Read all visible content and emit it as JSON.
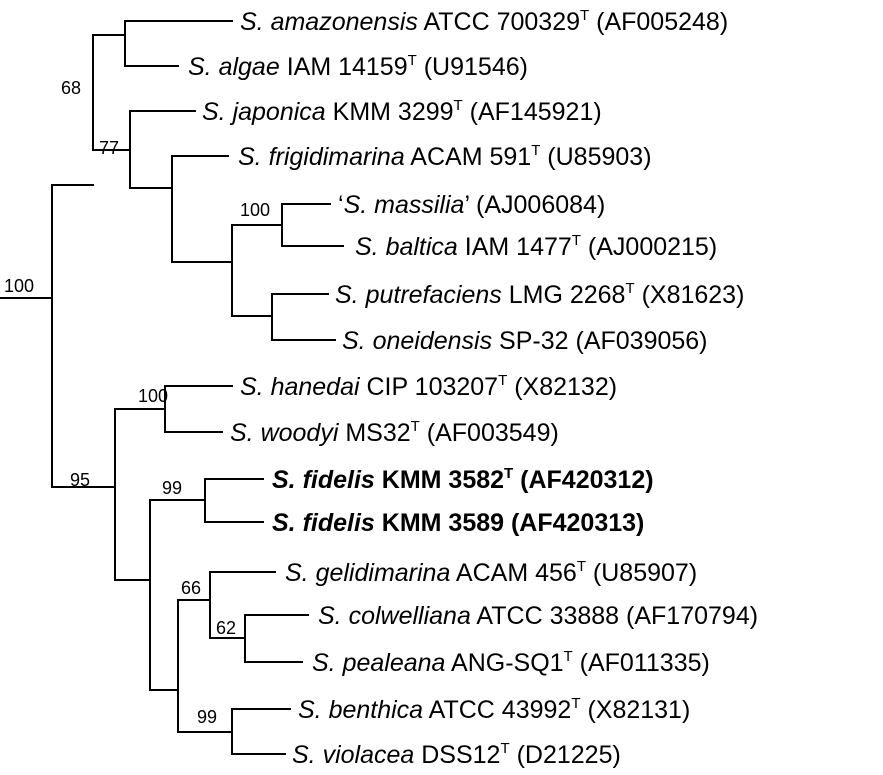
{
  "leaves": [
    {
      "species": "S. amazonensis",
      "strain": "ATCC 700329",
      "type_strain": true,
      "accession": "(AF005248)",
      "bold": false,
      "quoted": false
    },
    {
      "species": "S. algae",
      "strain": "IAM 14159",
      "type_strain": true,
      "accession": "(U91546)",
      "bold": false,
      "quoted": false
    },
    {
      "species": "S. japonica",
      "strain": "KMM 3299",
      "type_strain": true,
      "accession": "(AF145921)",
      "bold": false,
      "quoted": false
    },
    {
      "species": "S. frigidimarina",
      "strain": "ACAM 591",
      "type_strain": true,
      "accession": "(U85903)",
      "bold": false,
      "quoted": false
    },
    {
      "species": "S. massilia",
      "strain": "",
      "type_strain": false,
      "accession": "(AJ006084)",
      "bold": false,
      "quoted": true
    },
    {
      "species": "S. baltica",
      "strain": "IAM 1477",
      "type_strain": true,
      "accession": "(AJ000215)",
      "bold": false,
      "quoted": false
    },
    {
      "species": "S. putrefaciens",
      "strain": "LMG 2268",
      "type_strain": true,
      "accession": "(X81623)",
      "bold": false,
      "quoted": false
    },
    {
      "species": "S. oneidensis",
      "strain": "SP-32",
      "type_strain": false,
      "accession": "(AF039056)",
      "bold": false,
      "quoted": false
    },
    {
      "species": "S. hanedai",
      "strain": "CIP 103207",
      "type_strain": true,
      "accession": "(X82132)",
      "bold": false,
      "quoted": false
    },
    {
      "species": "S. woodyi",
      "strain": "MS32",
      "type_strain": true,
      "accession": "(AF003549)",
      "bold": false,
      "quoted": false
    },
    {
      "species": "S. fidelis",
      "strain": "KMM 3582",
      "type_strain": true,
      "accession": "(AF420312)",
      "bold": true,
      "quoted": false
    },
    {
      "species": "S. fidelis",
      "strain": "KMM 3589",
      "type_strain": false,
      "accession": "(AF420313)",
      "bold": true,
      "quoted": false
    },
    {
      "species": "S. gelidimarina",
      "strain": "ACAM 456",
      "type_strain": true,
      "accession": "(U85907)",
      "bold": false,
      "quoted": false
    },
    {
      "species": "S. colwelliana",
      "strain": "ATCC 33888",
      "type_strain": false,
      "accession": "(AF170794)",
      "bold": false,
      "quoted": false
    },
    {
      "species": "S. pealeana",
      "strain": "ANG-SQ1",
      "type_strain": true,
      "accession": "(AF011335)",
      "bold": false,
      "quoted": false
    },
    {
      "species": "S. benthica",
      "strain": "ATCC 43992",
      "type_strain": true,
      "accession": "(X82131)",
      "bold": false,
      "quoted": false
    },
    {
      "species": "S. violacea",
      "strain": "DSS12",
      "type_strain": true,
      "accession": "(D21225)",
      "bold": false,
      "quoted": false
    }
  ],
  "type_marker": "T",
  "bootstrap_values": [
    {
      "node": "root",
      "value": "100"
    },
    {
      "node": "upper-clade",
      "value": "68"
    },
    {
      "node": "japonica-group",
      "value": "77"
    },
    {
      "node": "massilia-baltica",
      "value": "100"
    },
    {
      "node": "lower-clade",
      "value": "95"
    },
    {
      "node": "hanedai-woodyi",
      "value": "100"
    },
    {
      "node": "fidelis-pair",
      "value": "99"
    },
    {
      "node": "gelidimarina-group",
      "value": "66"
    },
    {
      "node": "colwelliana-pealeana",
      "value": "62"
    },
    {
      "node": "benthica-violacea",
      "value": "99"
    }
  ],
  "colors": {
    "line": "#000000",
    "text": "#000000",
    "background": "#ffffff"
  }
}
